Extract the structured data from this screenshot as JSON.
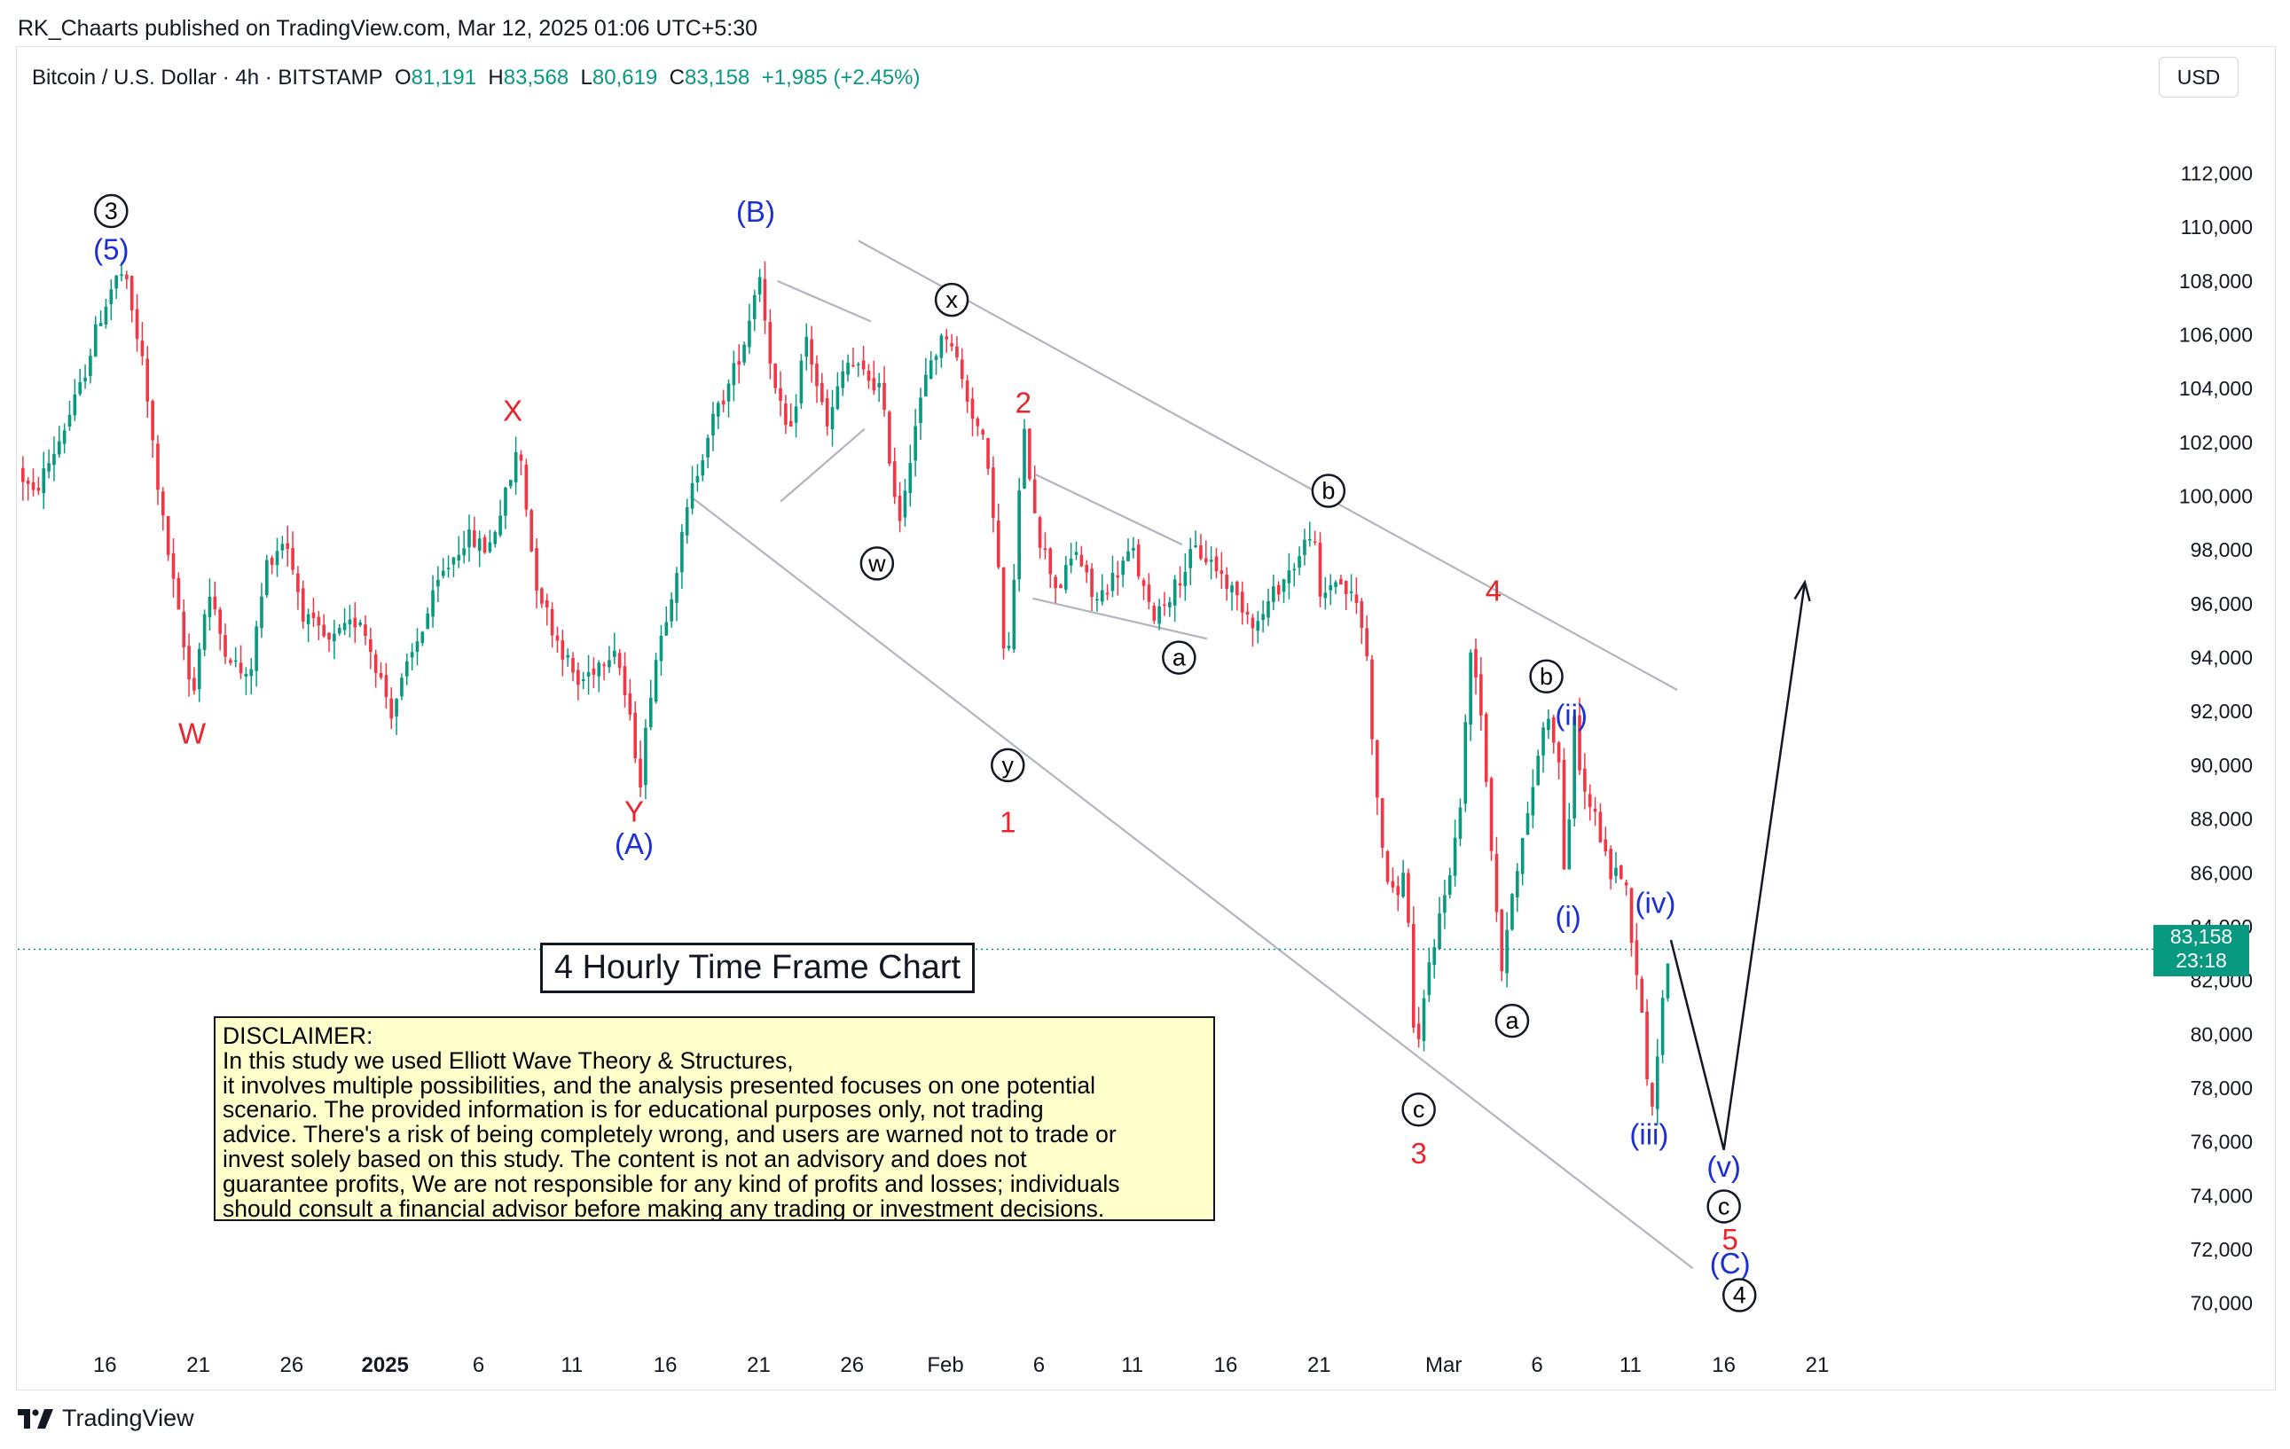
{
  "header": {
    "published": "RK_Chaarts published on TradingView.com, Mar 12, 2025 01:06 UTC+5:30"
  },
  "legend": {
    "symbol": "Bitcoin / U.S. Dollar · 4h · BITSTAMP",
    "open_label": "O",
    "open": "81,191",
    "high_label": "H",
    "high": "83,568",
    "low_label": "L",
    "low": "80,619",
    "close_label": "C",
    "close": "83,158",
    "change": "+1,985 (+2.45%)"
  },
  "currency": "USD",
  "price_tag": {
    "price": "83,158",
    "countdown": "23:18"
  },
  "chart_title": "4 Hourly Time Frame Chart",
  "disclaimer": {
    "lines": [
      "DISCLAIMER:",
      "In this study we used Elliott Wave Theory & Structures,",
      "it involves multiple possibilities, and the analysis presented focuses on one potential",
      "scenario. The provided information is for educational purposes only, not trading",
      "advice. There's a risk of being completely wrong, and users are warned not to trade or",
      "invest solely based on this study. The content is not an advisory and does not",
      "guarantee profits, We are not responsible for any kind of profits and losses; individuals",
      "should consult a financial advisor before making any trading or investment decisions."
    ]
  },
  "brand": "TradingView",
  "colors": {
    "up": "#089981",
    "down": "#f23645",
    "wave_red": "#e8242c",
    "wave_blue": "#1c2fd1",
    "line": "#b2b5be"
  },
  "chart_data": {
    "type": "candlestick",
    "title": "4 Hourly Time Frame Chart",
    "instrument": "Bitcoin / U.S. Dollar",
    "timeframe": "4h",
    "exchange": "BITSTAMP",
    "ylim": [
      69000,
      113500
    ],
    "xlim": [
      -0.8,
      67
    ],
    "y_ticks": [
      70000,
      72000,
      74000,
      76000,
      78000,
      80000,
      82000,
      84000,
      86000,
      88000,
      90000,
      92000,
      94000,
      96000,
      98000,
      100000,
      102000,
      104000,
      106000,
      108000,
      110000,
      112000
    ],
    "y_tick_labels": [
      "70,000",
      "72,000",
      "74,000",
      "76,000",
      "78,000",
      "80,000",
      "82,000",
      "84,000",
      "86,000",
      "88,000",
      "90,000",
      "92,000",
      "94,000",
      "96,000",
      "98,000",
      "100,000",
      "102,000",
      "104,000",
      "106,000",
      "108,000",
      "110,000",
      "112,000"
    ],
    "x_ticks": [
      {
        "label": "16",
        "x": 2,
        "bold": false
      },
      {
        "label": "21",
        "x": 5,
        "bold": false
      },
      {
        "label": "26",
        "x": 8,
        "bold": false
      },
      {
        "label": "2025",
        "x": 11,
        "bold": true
      },
      {
        "label": "6",
        "x": 14,
        "bold": false
      },
      {
        "label": "11",
        "x": 17,
        "bold": false
      },
      {
        "label": "16",
        "x": 20,
        "bold": false
      },
      {
        "label": "21",
        "x": 23,
        "bold": false
      },
      {
        "label": "26",
        "x": 26,
        "bold": false
      },
      {
        "label": "Feb",
        "x": 29,
        "bold": false
      },
      {
        "label": "6",
        "x": 32,
        "bold": false
      },
      {
        "label": "11",
        "x": 35,
        "bold": false
      },
      {
        "label": "16",
        "x": 38,
        "bold": false
      },
      {
        "label": "21",
        "x": 41,
        "bold": false
      },
      {
        "label": "Mar",
        "x": 45,
        "bold": false
      },
      {
        "label": "6",
        "x": 48,
        "bold": false
      },
      {
        "label": "11",
        "x": 51,
        "bold": false
      },
      {
        "label": "16",
        "x": 54,
        "bold": false
      },
      {
        "label": "21",
        "x": 57,
        "bold": false
      }
    ],
    "x_unit": "days from Dec 14, 2024",
    "current_price": 83158,
    "price_path": [
      [
        -0.8,
        101000
      ],
      [
        -0.3,
        100000
      ],
      [
        0.5,
        102000
      ],
      [
        1.2,
        104000
      ],
      [
        1.8,
        106500
      ],
      [
        2.3,
        108000
      ],
      [
        2.6,
        108300
      ],
      [
        3.2,
        105000
      ],
      [
        3.8,
        99500
      ],
      [
        4.3,
        96000
      ],
      [
        4.8,
        92500
      ],
      [
        5.3,
        96500
      ],
      [
        5.8,
        94500
      ],
      [
        6.6,
        93000
      ],
      [
        7.2,
        97500
      ],
      [
        7.8,
        98500
      ],
      [
        8.4,
        95500
      ],
      [
        9.2,
        94500
      ],
      [
        10.2,
        95500
      ],
      [
        11.2,
        92000
      ],
      [
        12.0,
        94500
      ],
      [
        12.8,
        97000
      ],
      [
        13.6,
        98500
      ],
      [
        14.3,
        98000
      ],
      [
        15.0,
        100500
      ],
      [
        15.3,
        102000
      ],
      [
        15.8,
        97000
      ],
      [
        16.4,
        95000
      ],
      [
        17.2,
        93000
      ],
      [
        18.4,
        94500
      ],
      [
        19.2,
        89500
      ],
      [
        19.6,
        93500
      ],
      [
        20.3,
        97000
      ],
      [
        20.8,
        100000
      ],
      [
        21.4,
        102500
      ],
      [
        22.0,
        104000
      ],
      [
        22.6,
        106000
      ],
      [
        23.0,
        108500
      ],
      [
        23.5,
        104000
      ],
      [
        24.0,
        102000
      ],
      [
        24.5,
        106000
      ],
      [
        25.2,
        102500
      ],
      [
        25.8,
        105000
      ],
      [
        26.4,
        104500
      ],
      [
        26.9,
        104000
      ],
      [
        27.5,
        99000
      ],
      [
        28.0,
        102500
      ],
      [
        28.5,
        105000
      ],
      [
        29.1,
        106200
      ],
      [
        29.6,
        104000
      ],
      [
        30.2,
        102000
      ],
      [
        30.6,
        99000
      ],
      [
        30.95,
        92800
      ],
      [
        31.2,
        97000
      ],
      [
        31.5,
        102500
      ],
      [
        32.0,
        98500
      ],
      [
        32.6,
        96500
      ],
      [
        33.2,
        98000
      ],
      [
        33.8,
        96000
      ],
      [
        34.4,
        97000
      ],
      [
        35.0,
        98000
      ],
      [
        35.6,
        95500
      ],
      [
        36.3,
        96500
      ],
      [
        37.0,
        98000
      ],
      [
        37.6,
        97500
      ],
      [
        38.2,
        96500
      ],
      [
        39.0,
        95200
      ],
      [
        39.6,
        96500
      ],
      [
        40.4,
        97800
      ],
      [
        40.8,
        99000
      ],
      [
        41.0,
        96000
      ],
      [
        41.5,
        97000
      ],
      [
        42.2,
        96000
      ],
      [
        42.5,
        94500
      ],
      [
        42.9,
        88000
      ],
      [
        43.3,
        85000
      ],
      [
        43.8,
        86000
      ],
      [
        44.1,
        78500
      ],
      [
        44.5,
        82500
      ],
      [
        45.0,
        85000
      ],
      [
        45.5,
        88000
      ],
      [
        45.9,
        94800
      ],
      [
        46.2,
        92000
      ],
      [
        46.6,
        86000
      ],
      [
        46.9,
        82000
      ],
      [
        47.2,
        85500
      ],
      [
        47.7,
        88000
      ],
      [
        48.1,
        91000
      ],
      [
        48.4,
        92000
      ],
      [
        48.7,
        90000
      ],
      [
        48.9,
        85500
      ],
      [
        49.2,
        91500
      ],
      [
        49.5,
        89000
      ],
      [
        49.9,
        88000
      ],
      [
        50.3,
        86000
      ],
      [
        50.8,
        86000
      ],
      [
        51.0,
        84000
      ],
      [
        51.25,
        82000
      ],
      [
        51.5,
        79000
      ],
      [
        51.7,
        77000
      ],
      [
        51.9,
        80000
      ],
      [
        52.1,
        82000
      ],
      [
        52.3,
        83158
      ]
    ],
    "trendlines": [
      {
        "name": "upper-channel",
        "from": [
          26.2,
          109500
        ],
        "to": [
          52.5,
          92800
        ]
      },
      {
        "name": "lower-channel",
        "from": [
          20.8,
          100000
        ],
        "to": [
          53.0,
          71300
        ]
      },
      {
        "name": "wedge-top",
        "from": [
          23.6,
          108000
        ],
        "to": [
          26.6,
          106500
        ]
      },
      {
        "name": "wedge-bottom",
        "from": [
          23.7,
          99800
        ],
        "to": [
          26.4,
          102500
        ]
      },
      {
        "name": "triangle-top",
        "from": [
          31.9,
          100800
        ],
        "to": [
          36.6,
          98200
        ]
      },
      {
        "name": "triangle-bottom",
        "from": [
          31.8,
          96200
        ],
        "to": [
          37.4,
          94700
        ]
      }
    ],
    "projection": {
      "points": [
        [
          52.3,
          83500
        ],
        [
          54.0,
          75700
        ],
        [
          56.6,
          96800
        ]
      ],
      "arrow": true
    },
    "annotations": [
      {
        "text": "3",
        "x": 2.2,
        "y": 110600,
        "color": "#000000",
        "circled": true
      },
      {
        "text": "(5)",
        "x": 2.2,
        "y": 109200,
        "color": "#1c2fd1",
        "circled": false
      },
      {
        "text": "W",
        "x": 4.8,
        "y": 91200,
        "color": "#e8242c",
        "circled": false
      },
      {
        "text": "X",
        "x": 15.1,
        "y": 103200,
        "color": "#e8242c",
        "circled": false
      },
      {
        "text": "Y",
        "x": 19.0,
        "y": 88300,
        "color": "#e8242c",
        "circled": false
      },
      {
        "text": "(A)",
        "x": 19.0,
        "y": 87100,
        "color": "#1c2fd1",
        "circled": false
      },
      {
        "text": "(B)",
        "x": 22.9,
        "y": 110600,
        "color": "#1c2fd1",
        "circled": false
      },
      {
        "text": "x",
        "x": 29.2,
        "y": 107300,
        "color": "#000000",
        "circled": true
      },
      {
        "text": "w",
        "x": 26.8,
        "y": 97500,
        "color": "#000000",
        "circled": true
      },
      {
        "text": "2",
        "x": 31.5,
        "y": 103500,
        "color": "#e8242c",
        "circled": false
      },
      {
        "text": "y",
        "x": 31.0,
        "y": 90000,
        "color": "#000000",
        "circled": true
      },
      {
        "text": "1",
        "x": 31.0,
        "y": 87900,
        "color": "#e8242c",
        "circled": false
      },
      {
        "text": "a",
        "x": 36.5,
        "y": 94000,
        "color": "#000000",
        "circled": true
      },
      {
        "text": "b",
        "x": 41.3,
        "y": 100200,
        "color": "#000000",
        "circled": true
      },
      {
        "text": "4",
        "x": 46.6,
        "y": 96500,
        "color": "#e8242c",
        "circled": false
      },
      {
        "text": "b",
        "x": 48.3,
        "y": 93300,
        "color": "#000000",
        "circled": true
      },
      {
        "text": "(ii)",
        "x": 49.1,
        "y": 91900,
        "color": "#1c2fd1",
        "circled": false
      },
      {
        "text": "(i)",
        "x": 49.0,
        "y": 84400,
        "color": "#1c2fd1",
        "circled": false
      },
      {
        "text": "(iv)",
        "x": 51.8,
        "y": 84900,
        "color": "#1c2fd1",
        "circled": false
      },
      {
        "text": "a",
        "x": 47.2,
        "y": 80500,
        "color": "#000000",
        "circled": true
      },
      {
        "text": "c",
        "x": 44.2,
        "y": 77200,
        "color": "#000000",
        "circled": true
      },
      {
        "text": "3",
        "x": 44.2,
        "y": 75600,
        "color": "#e8242c",
        "circled": false
      },
      {
        "text": "(iii)",
        "x": 51.6,
        "y": 76300,
        "color": "#1c2fd1",
        "circled": false
      },
      {
        "text": "(v)",
        "x": 54.0,
        "y": 75100,
        "color": "#1c2fd1",
        "circled": false
      },
      {
        "text": "c",
        "x": 54.0,
        "y": 73600,
        "color": "#000000",
        "circled": true
      },
      {
        "text": "5",
        "x": 54.2,
        "y": 72400,
        "color": "#e8242c",
        "circled": false
      },
      {
        "text": "(C)",
        "x": 54.2,
        "y": 71500,
        "color": "#1c2fd1",
        "circled": false
      },
      {
        "text": "4",
        "x": 54.5,
        "y": 70300,
        "color": "#000000",
        "circled": true
      }
    ]
  }
}
